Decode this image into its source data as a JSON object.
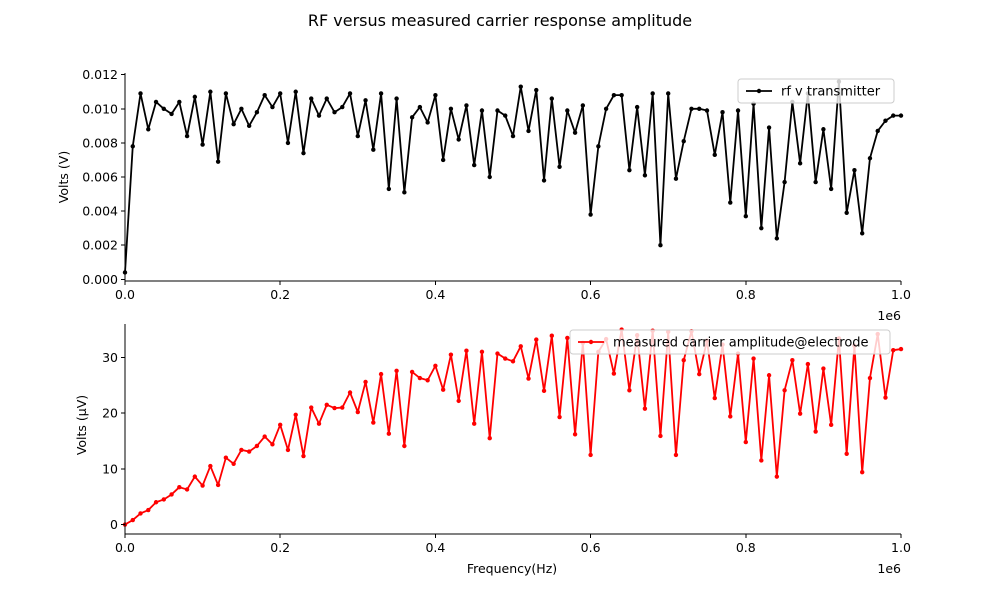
{
  "figure_title": "RF versus measured carrier response amplitude",
  "chart_data": [
    {
      "type": "line",
      "title": "",
      "xlabel": "",
      "ylabel": "Volts (V)",
      "x_offset_label": "1e6",
      "xlim": [
        0,
        1000000
      ],
      "ylim": [
        -0.0001,
        0.0121
      ],
      "xticks": [
        0,
        200000,
        400000,
        600000,
        800000,
        1000000
      ],
      "xtick_labels": [
        "0.0",
        "0.2",
        "0.4",
        "0.6",
        "0.8",
        "1.0"
      ],
      "yticks": [
        0,
        0.002,
        0.004,
        0.006,
        0.008,
        0.01,
        0.012
      ],
      "ytick_labels": [
        "0.000",
        "0.002",
        "0.004",
        "0.006",
        "0.008",
        "0.010",
        "0.012"
      ],
      "grid": false,
      "legend_position": "top-right",
      "color": "#000000",
      "series": [
        {
          "name": "rf v transmitter",
          "x": [
            0,
            10000,
            20000,
            30000,
            40000,
            50000,
            60000,
            70000,
            80000,
            90000,
            100000,
            110000,
            120000,
            130000,
            140000,
            150000,
            160000,
            170000,
            180000,
            190000,
            200000,
            210000,
            220000,
            230000,
            240000,
            250000,
            260000,
            270000,
            280000,
            290000,
            300000,
            310000,
            320000,
            330000,
            340000,
            350000,
            360000,
            370000,
            380000,
            390000,
            400000,
            410000,
            420000,
            430000,
            440000,
            450000,
            460000,
            470000,
            480000,
            490000,
            500000,
            510000,
            520000,
            530000,
            540000,
            550000,
            560000,
            570000,
            580000,
            590000,
            600000,
            610000,
            620000,
            630000,
            640000,
            650000,
            660000,
            670000,
            680000,
            690000,
            700000,
            710000,
            720000,
            730000,
            740000,
            750000,
            760000,
            770000,
            780000,
            790000,
            800000,
            810000,
            820000,
            830000,
            840000,
            850000,
            860000,
            870000,
            880000,
            890000,
            900000,
            910000,
            920000,
            930000,
            940000,
            950000,
            960000,
            970000,
            980000,
            990000,
            1000000
          ],
          "y": [
            0.0004,
            0.0078,
            0.0109,
            0.0088,
            0.0104,
            0.01,
            0.0097,
            0.0104,
            0.0084,
            0.0107,
            0.0079,
            0.011,
            0.0069,
            0.0109,
            0.0091,
            0.01,
            0.009,
            0.0098,
            0.0108,
            0.0101,
            0.0109,
            0.008,
            0.011,
            0.0074,
            0.0106,
            0.0096,
            0.0106,
            0.0098,
            0.0101,
            0.0109,
            0.0084,
            0.0105,
            0.0076,
            0.0109,
            0.0053,
            0.0106,
            0.0051,
            0.0095,
            0.0101,
            0.0092,
            0.0108,
            0.007,
            0.01,
            0.0082,
            0.0102,
            0.0067,
            0.0099,
            0.006,
            0.0099,
            0.0096,
            0.0084,
            0.0113,
            0.0087,
            0.0111,
            0.0058,
            0.0106,
            0.0066,
            0.0099,
            0.0086,
            0.0102,
            0.0038,
            0.0078,
            0.01,
            0.0108,
            0.0108,
            0.0064,
            0.0101,
            0.0061,
            0.0109,
            0.002,
            0.0109,
            0.0059,
            0.0081,
            0.01,
            0.01,
            0.0099,
            0.0073,
            0.0098,
            0.0045,
            0.0099,
            0.0037,
            0.0103,
            0.003,
            0.0089,
            0.0024,
            0.0057,
            0.0104,
            0.0068,
            0.0109,
            0.0057,
            0.0088,
            0.0053,
            0.0116,
            0.0039,
            0.0064,
            0.0027,
            0.0071,
            0.0087,
            0.0093,
            0.0096,
            0.0096
          ]
        }
      ]
    },
    {
      "type": "line",
      "title": "",
      "xlabel": "Frequency(Hz)",
      "ylabel": "Volts (μV)",
      "x_offset_label": "1e6",
      "xlim": [
        0,
        1000000
      ],
      "ylim": [
        -1.7,
        36
      ],
      "xticks": [
        0,
        200000,
        400000,
        600000,
        800000,
        1000000
      ],
      "xtick_labels": [
        "0.0",
        "0.2",
        "0.4",
        "0.6",
        "0.8",
        "1.0"
      ],
      "yticks": [
        0,
        10,
        20,
        30
      ],
      "ytick_labels": [
        "0",
        "10",
        "20",
        "30"
      ],
      "grid": false,
      "legend_position": "top-right",
      "color": "#ff0000",
      "series": [
        {
          "name": "measured carrier amplitude@electrode",
          "x": [
            0,
            10000,
            20000,
            30000,
            40000,
            50000,
            60000,
            70000,
            80000,
            90000,
            100000,
            110000,
            120000,
            130000,
            140000,
            150000,
            160000,
            170000,
            180000,
            190000,
            200000,
            210000,
            220000,
            230000,
            240000,
            250000,
            260000,
            270000,
            280000,
            290000,
            300000,
            310000,
            320000,
            330000,
            340000,
            350000,
            360000,
            370000,
            380000,
            390000,
            400000,
            410000,
            420000,
            430000,
            440000,
            450000,
            460000,
            470000,
            480000,
            490000,
            500000,
            510000,
            520000,
            530000,
            540000,
            550000,
            560000,
            570000,
            580000,
            590000,
            600000,
            610000,
            620000,
            630000,
            640000,
            650000,
            660000,
            670000,
            680000,
            690000,
            700000,
            710000,
            720000,
            730000,
            740000,
            750000,
            760000,
            770000,
            780000,
            790000,
            800000,
            810000,
            820000,
            830000,
            840000,
            850000,
            860000,
            870000,
            880000,
            890000,
            900000,
            910000,
            920000,
            930000,
            940000,
            950000,
            960000,
            970000,
            980000,
            990000,
            1000000
          ],
          "y": [
            0.0,
            0.8,
            2.0,
            2.6,
            4.0,
            4.5,
            5.4,
            6.7,
            6.3,
            8.6,
            7.0,
            10.5,
            7.1,
            12.0,
            10.9,
            13.4,
            13.1,
            14.1,
            15.8,
            14.4,
            17.9,
            13.4,
            19.7,
            12.3,
            21.0,
            18.1,
            21.5,
            20.9,
            21.0,
            23.7,
            20.2,
            25.6,
            18.3,
            27.0,
            16.3,
            27.6,
            14.1,
            27.4,
            26.3,
            25.9,
            28.5,
            24.2,
            30.5,
            22.2,
            31.2,
            18.1,
            31.0,
            15.5,
            30.7,
            29.8,
            29.3,
            32.0,
            26.2,
            33.2,
            24.0,
            33.9,
            19.3,
            33.5,
            16.2,
            32.6,
            12.5,
            31.0,
            33.3,
            27.1,
            35.0,
            24.1,
            34.0,
            20.8,
            34.8,
            15.9,
            34.6,
            12.5,
            29.5,
            34.7,
            27.0,
            33.0,
            22.7,
            32.3,
            19.4,
            30.7,
            14.8,
            29.8,
            11.5,
            26.8,
            8.6,
            24.1,
            29.5,
            19.9,
            28.8,
            16.7,
            28.0,
            17.9,
            33.4,
            12.7,
            32.1,
            9.4,
            26.3,
            34.2,
            22.8,
            31.3,
            31.5
          ]
        }
      ]
    }
  ]
}
